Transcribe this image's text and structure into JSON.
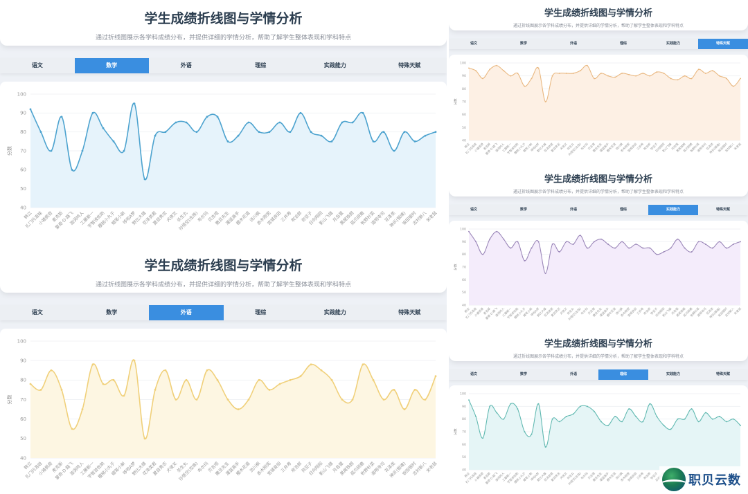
{
  "header": {
    "title": "学生成绩折线图与学情分析",
    "subtitle": "通过折线图展示各学科成绩分布，并提供详细的学情分析，帮助了解学生整体表现和学科特点"
  },
  "tabs": [
    "语文",
    "数学",
    "外语",
    "理综",
    "实践能力",
    "特殊天赋"
  ],
  "watermark": {
    "text": "职贝云数"
  },
  "students": [
    "韩立",
    "扎门托洛娃",
    "小猪佩奇",
    "麦克斯",
    "蒙奇·D·路飞",
    "漩涡鸣人",
    "工藤新一",
    "宇智波佐助",
    "樱桃小丸子",
    "蜡笔小新",
    "哆啦A梦",
    "野比大雄",
    "花泽类君",
    "夏目贵志",
    "犬夜叉",
    "杀生丸",
    "孙悟空(龙珠)",
    "布尔玛",
    "贝吉塔",
    "撒旦先生",
    "灌篮高手",
    "樱木花道",
    "流川枫",
    "赤木刚宪",
    "宫城良田",
    "三井寿",
    "炭治郎",
    "弥豆子",
    "日向翔阳",
    "影山飞雄",
    "月岛萤",
    "黑尾铁朗",
    "孤爪研磨",
    "牧野杉菜",
    "道明寺司",
    "花泽类",
    "神乐(银魂)",
    "坂田银时",
    "志村新八",
    "米老鼠"
  ],
  "panels": [
    {
      "id": "math",
      "active_tab": 1,
      "ylabel": "分数",
      "color": "#4da3cf",
      "fill": "#e6f3fb"
    },
    {
      "id": "foreign",
      "active_tab": 2,
      "ylabel": "分数",
      "color": "#f0d07a",
      "fill": "#fdf6e2"
    },
    {
      "id": "talent",
      "active_tab": 5,
      "ylabel": "分数",
      "color": "#e9b77f",
      "fill": "#fdf0e4"
    },
    {
      "id": "practice",
      "active_tab": 4,
      "ylabel": "分数",
      "color": "#9a86b8",
      "fill": "#f4ecfb"
    },
    {
      "id": "science",
      "active_tab": 3,
      "ylabel": "分数",
      "color": "#5fb8b0",
      "fill": "#e5f5f6"
    }
  ],
  "chart_data": [
    {
      "type": "area",
      "title": "数学",
      "xlabel": "",
      "ylabel": "分数",
      "ylim": [
        40,
        100
      ],
      "yticks": [
        40,
        50,
        60,
        70,
        80,
        90,
        100
      ],
      "grid": true,
      "smooth": true,
      "series": [
        {
          "name": "数学",
          "values": [
            92,
            80,
            70,
            88,
            60,
            70,
            90,
            82,
            75,
            70,
            95,
            55,
            78,
            80,
            85,
            85,
            80,
            88,
            88,
            75,
            78,
            85,
            80,
            80,
            85,
            80,
            90,
            80,
            78,
            75,
            85,
            85,
            90,
            75,
            80,
            70,
            80,
            75,
            78,
            80
          ]
        }
      ]
    },
    {
      "type": "area",
      "title": "外语",
      "xlabel": "",
      "ylabel": "分数",
      "ylim": [
        40,
        100
      ],
      "yticks": [
        40,
        50,
        60,
        70,
        80,
        90,
        100
      ],
      "grid": true,
      "smooth": true,
      "series": [
        {
          "name": "外语",
          "values": [
            78,
            75,
            85,
            75,
            55,
            65,
            88,
            78,
            80,
            72,
            90,
            50,
            75,
            85,
            70,
            80,
            70,
            85,
            80,
            70,
            65,
            70,
            80,
            75,
            78,
            80,
            82,
            88,
            85,
            80,
            70,
            70,
            88,
            80,
            70,
            75,
            65,
            75,
            70,
            82
          ]
        }
      ]
    },
    {
      "type": "area",
      "title": "特殊天赋",
      "xlabel": "",
      "ylabel": "分数",
      "ylim": [
        40,
        100
      ],
      "yticks": [
        40,
        50,
        60,
        70,
        80,
        90,
        100
      ],
      "grid": true,
      "smooth": true,
      "series": [
        {
          "name": "特殊天赋",
          "values": [
            96,
            94,
            88,
            95,
            98,
            94,
            90,
            92,
            82,
            88,
            96,
            70,
            90,
            92,
            92,
            92,
            94,
            98,
            88,
            92,
            90,
            89,
            92,
            91,
            90,
            92,
            90,
            93,
            92,
            88,
            87,
            90,
            88,
            95,
            92,
            94,
            90,
            88,
            82,
            88
          ]
        }
      ]
    },
    {
      "type": "area",
      "title": "实践能力",
      "xlabel": "",
      "ylabel": "分数",
      "ylim": [
        40,
        100
      ],
      "yticks": [
        40,
        50,
        60,
        70,
        80,
        90,
        100
      ],
      "grid": true,
      "smooth": true,
      "series": [
        {
          "name": "实践能力",
          "values": [
            98,
            90,
            80,
            92,
            98,
            92,
            85,
            90,
            75,
            85,
            90,
            65,
            88,
            82,
            90,
            88,
            95,
            85,
            90,
            92,
            88,
            85,
            90,
            85,
            88,
            85,
            85,
            80,
            82,
            85,
            92,
            85,
            82,
            90,
            88,
            85,
            90,
            85,
            88,
            90
          ]
        }
      ]
    },
    {
      "type": "area",
      "title": "理综",
      "xlabel": "",
      "ylabel": "分数",
      "ylim": [
        40,
        100
      ],
      "yticks": [
        40,
        50,
        60,
        70,
        80,
        90,
        100
      ],
      "grid": true,
      "smooth": true,
      "series": [
        {
          "name": "理综",
          "values": [
            95,
            82,
            65,
            90,
            85,
            80,
            92,
            88,
            70,
            68,
            92,
            58,
            80,
            78,
            82,
            84,
            90,
            90,
            86,
            78,
            75,
            82,
            78,
            88,
            82,
            78,
            92,
            82,
            75,
            72,
            80,
            80,
            88,
            78,
            85,
            80,
            82,
            78,
            80,
            75
          ]
        }
      ]
    }
  ]
}
